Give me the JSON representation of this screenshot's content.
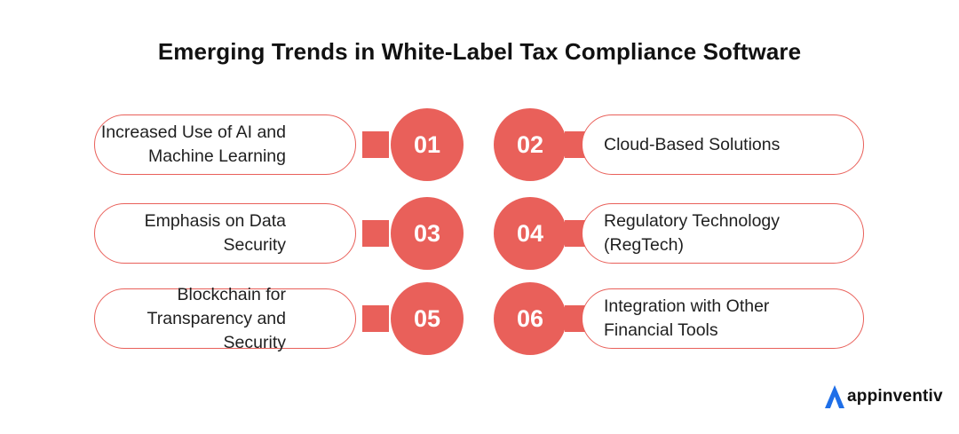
{
  "title": "Emerging Trends in White-Label Tax Compliance Software",
  "accent_color": "#e9605a",
  "items": [
    {
      "number": "01",
      "label": "Increased Use of AI and Machine Learning"
    },
    {
      "number": "02",
      "label": "Cloud-Based Solutions"
    },
    {
      "number": "03",
      "label": "Emphasis on Data Security"
    },
    {
      "number": "04",
      "label": "Regulatory Technology (RegTech)"
    },
    {
      "number": "05",
      "label": "Blockchain for Transparency and Security"
    },
    {
      "number": "06",
      "label": "Integration with Other Financial Tools"
    }
  ],
  "logo": {
    "icon": "appinventiv-logo-icon",
    "text": "appinventiv"
  }
}
